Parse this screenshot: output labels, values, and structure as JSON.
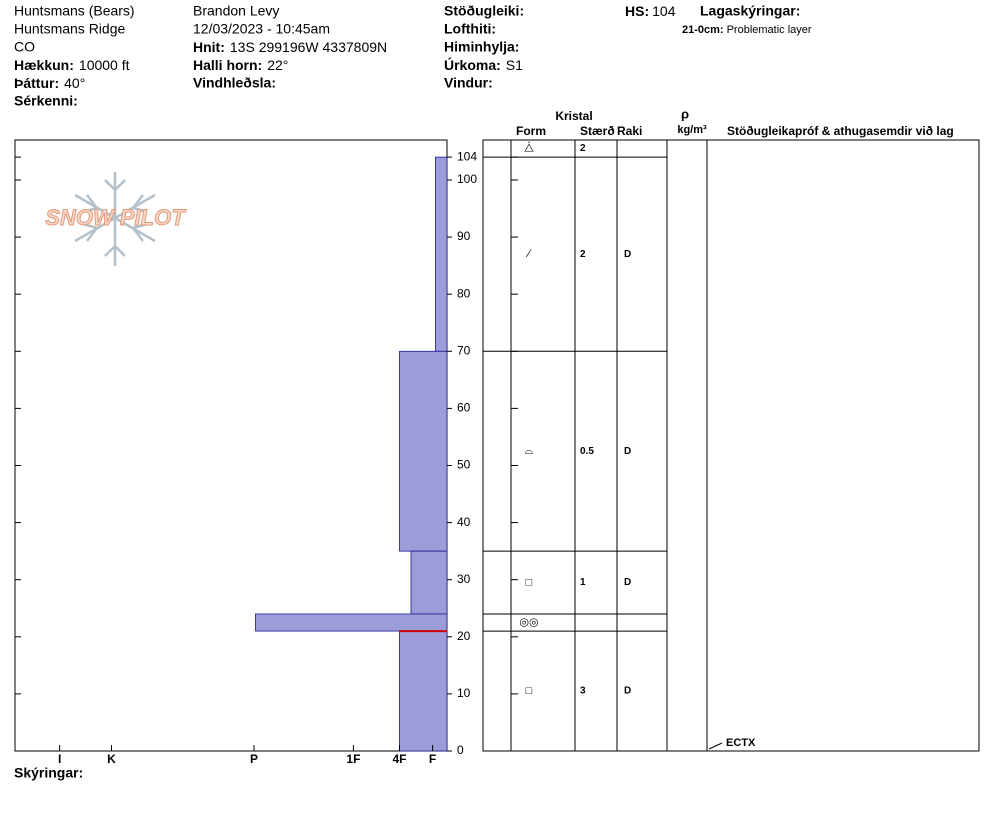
{
  "header": {
    "location": "Huntsmans (Bears)",
    "site": "Huntsmans Ridge",
    "state": "CO",
    "elevation": {
      "label": "Hækkun:",
      "value": "10000 ft"
    },
    "aspect": {
      "label": "Þáttur:",
      "value": "40°"
    },
    "features": {
      "label": "Sérkenni:"
    },
    "observer": "Brandon Levy",
    "datetime": "12/03/2023 - 10:45am",
    "coords": {
      "label": "Hnit:",
      "value": "13S 299196W 4337809N"
    },
    "slope": {
      "label": "Halli horn:",
      "value": "22°"
    },
    "wind_loading": {
      "label": "Vindhleðsla:"
    },
    "stability": {
      "label": "Stöðugleiki:"
    },
    "air_temp": {
      "label": "Lofthiti:"
    },
    "sky": {
      "label": "Himinhylja:"
    },
    "precip": {
      "label": "Úrkoma:",
      "value": "S1"
    },
    "wind": {
      "label": "Vindur:"
    },
    "hs": {
      "label": "HS:",
      "value": 104
    },
    "notes": {
      "label": "Lagaskýringar:",
      "range": "21-0cm:",
      "text": "Problematic layer"
    }
  },
  "logo": "SNOW PILOT",
  "chart_data": {
    "type": "snow-profile",
    "ylim": [
      0,
      107
    ],
    "yticks": [
      0,
      10,
      20,
      30,
      40,
      50,
      60,
      70,
      80,
      90,
      100,
      104
    ],
    "xlim": [
      0,
      30
    ],
    "xticks": [
      {
        "value": 26.9,
        "label": "I"
      },
      {
        "value": 23.3,
        "label": "K"
      },
      {
        "value": 13.4,
        "label": "P"
      },
      {
        "value": 6.5,
        "label": "1F"
      },
      {
        "value": 3.3,
        "label": "4F"
      },
      {
        "value": 1,
        "label": "F"
      }
    ],
    "color": "#9c9cd8",
    "hardness_layers": [
      {
        "top": 104,
        "bottom": 70,
        "hardness": 0.8
      },
      {
        "top": 70,
        "bottom": 35,
        "hardness": 3.3
      },
      {
        "top": 35,
        "bottom": 24,
        "hardness": 2.5
      },
      {
        "top": 24,
        "bottom": 21,
        "hardness": 13.3
      },
      {
        "top": 21,
        "bottom": 0,
        "hardness": 3.3
      }
    ],
    "problem_layer_top": 21,
    "problem_color": "#cc0000",
    "columns": {
      "crystal": "Kristal",
      "form": "Form",
      "size": "Stærð",
      "moisture": "Raki",
      "rho": "ρ",
      "density_unit": "kg/m³",
      "tests": "Stöðugleikapróf & athugasemdir við lag"
    },
    "layers": [
      {
        "bottom": 104,
        "form": "⧊",
        "size": "2"
      },
      {
        "bottom": 70,
        "form": "⁄",
        "size": "2",
        "moisture": "D"
      },
      {
        "bottom": 35,
        "form": "⌓",
        "size": "0.5",
        "moisture": "D"
      },
      {
        "bottom": 24,
        "form": "□",
        "size": "1",
        "moisture": "D"
      },
      {
        "bottom": 21,
        "form": "◎◎"
      },
      {
        "bottom": 0,
        "form": "□",
        "size": "3",
        "moisture": "D"
      }
    ],
    "tests": [
      {
        "label": "ECTX",
        "height": 0
      }
    ]
  },
  "footer": {
    "comments": "Skýringar:"
  }
}
